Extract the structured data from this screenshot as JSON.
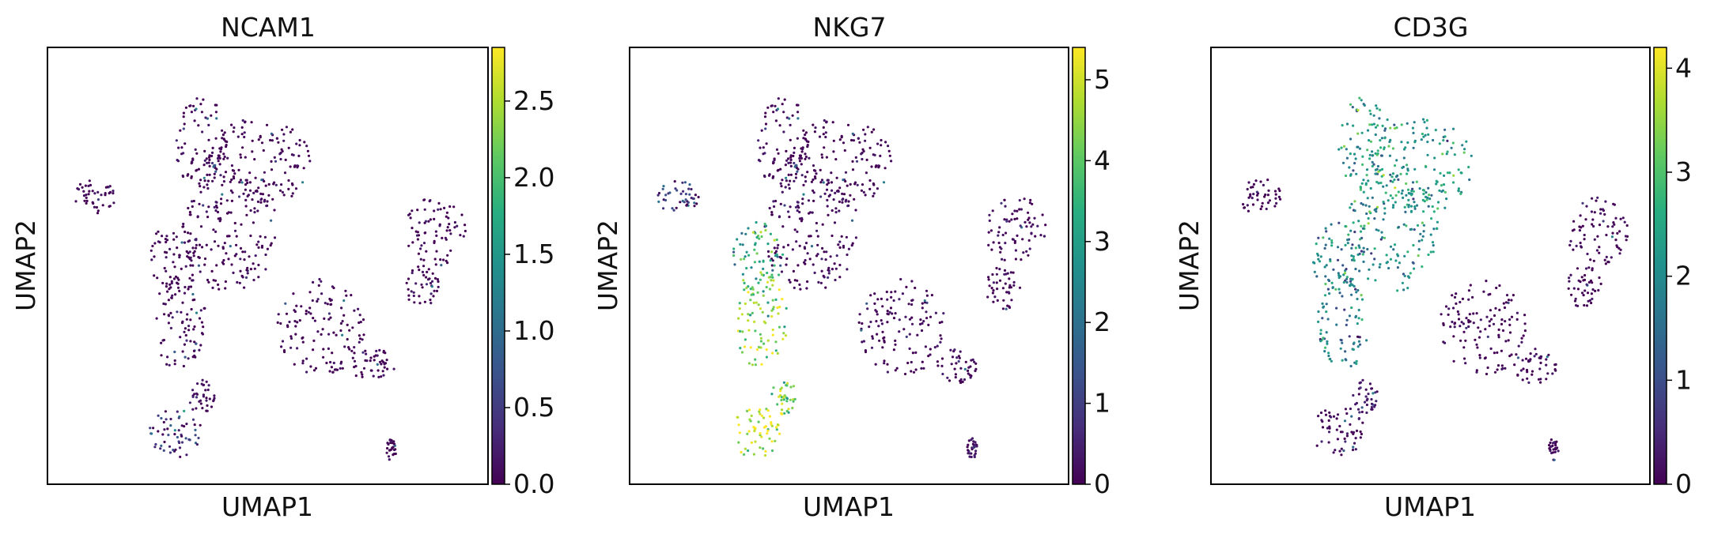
{
  "chart_data": [
    {
      "type": "scatter",
      "title": "NCAM1",
      "xlabel": "UMAP1",
      "ylabel": "UMAP2",
      "colormap": "viridis",
      "colorbar": {
        "min": 0,
        "max": 2.85,
        "ticks": [
          "0.0",
          "0.5",
          "1.0",
          "1.5",
          "2.0",
          "2.5"
        ],
        "tick_values": [
          0,
          0.5,
          1.0,
          1.5,
          2.0,
          2.5
        ]
      },
      "grid": false,
      "clusters": [
        {
          "name": "top_left_lobe",
          "cx": 0.35,
          "cy": 0.22,
          "rx": 0.06,
          "ry": 0.11,
          "value": 0.02
        },
        {
          "name": "top_right_lobe",
          "cx": 0.48,
          "cy": 0.27,
          "rx": 0.12,
          "ry": 0.11,
          "value": 0.02
        },
        {
          "name": "center_body",
          "cx": 0.41,
          "cy": 0.42,
          "rx": 0.11,
          "ry": 0.14,
          "value": 0.02
        },
        {
          "name": "left_arm_upper",
          "cx": 0.29,
          "cy": 0.48,
          "rx": 0.06,
          "ry": 0.08,
          "value": 0.03
        },
        {
          "name": "left_arm_lower",
          "cx": 0.3,
          "cy": 0.63,
          "rx": 0.06,
          "ry": 0.11,
          "value": 0.03
        },
        {
          "name": "bottom_left_blob",
          "cx": 0.29,
          "cy": 0.88,
          "rx": 0.06,
          "ry": 0.06,
          "value": 0.45
        },
        {
          "name": "bottom_left_tail",
          "cx": 0.35,
          "cy": 0.8,
          "rx": 0.03,
          "ry": 0.04,
          "value": 0.12
        },
        {
          "name": "small_far_left",
          "cx": 0.11,
          "cy": 0.34,
          "rx": 0.05,
          "ry": 0.04,
          "value": 0.02
        },
        {
          "name": "middle_right",
          "cx": 0.62,
          "cy": 0.64,
          "rx": 0.1,
          "ry": 0.11,
          "value": 0.02
        },
        {
          "name": "middle_right_tail",
          "cx": 0.74,
          "cy": 0.73,
          "rx": 0.05,
          "ry": 0.04,
          "value": 0.02
        },
        {
          "name": "right_upper_blob",
          "cx": 0.88,
          "cy": 0.42,
          "rx": 0.07,
          "ry": 0.08,
          "value": 0.02
        },
        {
          "name": "right_lower_blob",
          "cx": 0.85,
          "cy": 0.55,
          "rx": 0.04,
          "ry": 0.05,
          "value": 0.02
        },
        {
          "name": "tiny_bottom",
          "cx": 0.78,
          "cy": 0.92,
          "rx": 0.012,
          "ry": 0.025,
          "value": 0.02
        }
      ]
    },
    {
      "type": "scatter",
      "title": "NKG7",
      "xlabel": "UMAP1",
      "ylabel": "UMAP2",
      "colormap": "viridis",
      "colorbar": {
        "min": 0,
        "max": 5.4,
        "ticks": [
          "0",
          "1",
          "2",
          "3",
          "4",
          "5"
        ],
        "tick_values": [
          0,
          1,
          2,
          3,
          4,
          5
        ]
      },
      "grid": false,
      "clusters": [
        {
          "name": "top_left_lobe",
          "cx": 0.35,
          "cy": 0.22,
          "rx": 0.06,
          "ry": 0.11,
          "value": 0.05
        },
        {
          "name": "top_right_lobe",
          "cx": 0.48,
          "cy": 0.27,
          "rx": 0.12,
          "ry": 0.11,
          "value": 0.05
        },
        {
          "name": "center_body",
          "cx": 0.41,
          "cy": 0.42,
          "rx": 0.11,
          "ry": 0.14,
          "value": 0.15
        },
        {
          "name": "left_arm_upper",
          "cx": 0.29,
          "cy": 0.48,
          "rx": 0.06,
          "ry": 0.08,
          "value": 3.4
        },
        {
          "name": "left_arm_lower",
          "cx": 0.3,
          "cy": 0.63,
          "rx": 0.06,
          "ry": 0.11,
          "value": 4.4
        },
        {
          "name": "bottom_left_blob",
          "cx": 0.29,
          "cy": 0.88,
          "rx": 0.06,
          "ry": 0.06,
          "value": 4.9
        },
        {
          "name": "bottom_left_tail",
          "cx": 0.35,
          "cy": 0.8,
          "rx": 0.03,
          "ry": 0.04,
          "value": 4.2
        },
        {
          "name": "small_far_left",
          "cx": 0.11,
          "cy": 0.34,
          "rx": 0.05,
          "ry": 0.04,
          "value": 0.9
        },
        {
          "name": "middle_right",
          "cx": 0.62,
          "cy": 0.64,
          "rx": 0.1,
          "ry": 0.11,
          "value": 0.1
        },
        {
          "name": "middle_right_tail",
          "cx": 0.74,
          "cy": 0.73,
          "rx": 0.05,
          "ry": 0.04,
          "value": 0.1
        },
        {
          "name": "right_upper_blob",
          "cx": 0.88,
          "cy": 0.42,
          "rx": 0.07,
          "ry": 0.08,
          "value": 0.1
        },
        {
          "name": "right_lower_blob",
          "cx": 0.85,
          "cy": 0.55,
          "rx": 0.04,
          "ry": 0.05,
          "value": 0.1
        },
        {
          "name": "tiny_bottom",
          "cx": 0.78,
          "cy": 0.92,
          "rx": 0.012,
          "ry": 0.025,
          "value": 0.3
        }
      ]
    },
    {
      "type": "scatter",
      "title": "CD3G",
      "xlabel": "UMAP1",
      "ylabel": "UMAP2",
      "colormap": "viridis",
      "colorbar": {
        "min": 0,
        "max": 4.2,
        "ticks": [
          "0",
          "1",
          "2",
          "3",
          "4"
        ],
        "tick_values": [
          0,
          1,
          2,
          3,
          4
        ]
      },
      "grid": false,
      "clusters": [
        {
          "name": "top_left_lobe",
          "cx": 0.35,
          "cy": 0.22,
          "rx": 0.06,
          "ry": 0.11,
          "value": 2.2
        },
        {
          "name": "top_right_lobe",
          "cx": 0.48,
          "cy": 0.27,
          "rx": 0.12,
          "ry": 0.11,
          "value": 2.3
        },
        {
          "name": "center_body",
          "cx": 0.41,
          "cy": 0.42,
          "rx": 0.11,
          "ry": 0.14,
          "value": 2.1
        },
        {
          "name": "left_arm_upper",
          "cx": 0.29,
          "cy": 0.48,
          "rx": 0.06,
          "ry": 0.08,
          "value": 1.9
        },
        {
          "name": "left_arm_lower",
          "cx": 0.3,
          "cy": 0.63,
          "rx": 0.06,
          "ry": 0.11,
          "value": 1.8
        },
        {
          "name": "bottom_left_blob",
          "cx": 0.29,
          "cy": 0.88,
          "rx": 0.06,
          "ry": 0.06,
          "value": 0.1
        },
        {
          "name": "bottom_left_tail",
          "cx": 0.35,
          "cy": 0.8,
          "rx": 0.03,
          "ry": 0.04,
          "value": 0.3
        },
        {
          "name": "small_far_left",
          "cx": 0.11,
          "cy": 0.34,
          "rx": 0.05,
          "ry": 0.04,
          "value": 0.05
        },
        {
          "name": "middle_right",
          "cx": 0.62,
          "cy": 0.64,
          "rx": 0.1,
          "ry": 0.11,
          "value": 0.05
        },
        {
          "name": "middle_right_tail",
          "cx": 0.74,
          "cy": 0.73,
          "rx": 0.05,
          "ry": 0.04,
          "value": 0.05
        },
        {
          "name": "right_upper_blob",
          "cx": 0.88,
          "cy": 0.42,
          "rx": 0.07,
          "ry": 0.08,
          "value": 0.05
        },
        {
          "name": "right_lower_blob",
          "cx": 0.85,
          "cy": 0.55,
          "rx": 0.04,
          "ry": 0.05,
          "value": 0.05
        },
        {
          "name": "tiny_bottom",
          "cx": 0.78,
          "cy": 0.92,
          "rx": 0.012,
          "ry": 0.025,
          "value": 0.05
        }
      ]
    }
  ]
}
